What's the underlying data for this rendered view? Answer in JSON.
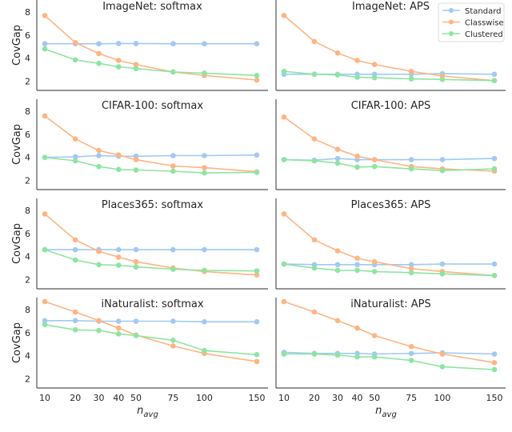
{
  "chart_data": {
    "type": "line",
    "layout": "4 rows x 2 columns",
    "x": [
      10,
      20,
      30,
      40,
      50,
      75,
      100,
      150
    ],
    "x_tick_labels": [
      "10",
      "20",
      "30",
      "40",
      "50",
      "75",
      "100",
      "150"
    ],
    "xlabel_main": "n",
    "xlabel_sub": "avg",
    "ylabel": "CovGap",
    "y_ticks": [
      2,
      4,
      6,
      8
    ],
    "y_tick_labels": [
      "2",
      "4",
      "6",
      "8"
    ],
    "ylim": [
      1.2,
      9.05
    ],
    "xscale": "sqrt",
    "legend": {
      "placement": "top-right of ImageNet: APS panel",
      "entries": [
        "Standard",
        "Classwise",
        "Clustered"
      ]
    },
    "colors": {
      "Standard": "#a1c9f4",
      "Classwise": "#ffb482",
      "Clustered": "#8de5a1"
    },
    "panels": [
      {
        "title": "ImageNet: softmax",
        "series": [
          {
            "name": "Standard",
            "values": [
              5.25,
              5.25,
              5.25,
              5.27,
              5.27,
              5.25,
              5.25,
              5.25
            ]
          },
          {
            "name": "Classwise",
            "values": [
              7.7,
              5.35,
              4.4,
              3.8,
              3.45,
              2.8,
              2.5,
              2.1
            ]
          },
          {
            "name": "Clustered",
            "values": [
              4.8,
              3.85,
              3.55,
              3.25,
              3.1,
              2.8,
              2.7,
              2.5
            ]
          }
        ]
      },
      {
        "title": "ImageNet: APS",
        "series": [
          {
            "name": "Standard",
            "values": [
              2.6,
              2.6,
              2.6,
              2.6,
              2.6,
              2.6,
              2.65,
              2.6
            ]
          },
          {
            "name": "Classwise",
            "values": [
              7.7,
              5.45,
              4.45,
              3.8,
              3.45,
              2.85,
              2.45,
              2.05
            ]
          },
          {
            "name": "Clustered",
            "values": [
              2.85,
              2.6,
              2.55,
              2.35,
              2.3,
              2.2,
              2.15,
              2.05
            ]
          }
        ]
      },
      {
        "title": "CIFAR-100: softmax",
        "series": [
          {
            "name": "Standard",
            "values": [
              4.0,
              4.05,
              4.15,
              4.1,
              4.1,
              4.15,
              4.15,
              4.2
            ]
          },
          {
            "name": "Classwise",
            "values": [
              7.6,
              5.6,
              4.6,
              4.2,
              3.8,
              3.25,
              3.1,
              2.75
            ]
          },
          {
            "name": "Clustered",
            "values": [
              4.0,
              3.7,
              3.2,
              2.95,
              2.9,
              2.8,
              2.65,
              2.7
            ]
          }
        ]
      },
      {
        "title": "CIFAR-100: APS",
        "series": [
          {
            "name": "Standard",
            "values": [
              3.8,
              3.75,
              3.9,
              3.8,
              3.8,
              3.8,
              3.8,
              3.9
            ]
          },
          {
            "name": "Classwise",
            "values": [
              7.5,
              5.6,
              4.7,
              4.1,
              3.8,
              3.2,
              3.0,
              2.8
            ]
          },
          {
            "name": "Clustered",
            "values": [
              3.8,
              3.7,
              3.5,
              3.15,
              3.2,
              3.0,
              2.85,
              3.0
            ]
          }
        ]
      },
      {
        "title": "Places365: softmax",
        "series": [
          {
            "name": "Standard",
            "values": [
              4.6,
              4.6,
              4.6,
              4.6,
              4.6,
              4.6,
              4.6,
              4.6
            ]
          },
          {
            "name": "Classwise",
            "values": [
              7.7,
              5.45,
              4.45,
              3.95,
              3.55,
              3.0,
              2.7,
              2.4
            ]
          },
          {
            "name": "Clustered",
            "values": [
              4.6,
              3.7,
              3.3,
              3.25,
              3.1,
              2.9,
              2.8,
              2.75
            ]
          }
        ]
      },
      {
        "title": "Places365: APS",
        "series": [
          {
            "name": "Standard",
            "values": [
              3.35,
              3.3,
              3.3,
              3.3,
              3.3,
              3.3,
              3.35,
              3.35
            ]
          },
          {
            "name": "Classwise",
            "values": [
              7.7,
              5.45,
              4.5,
              3.85,
              3.55,
              2.95,
              2.7,
              2.35
            ]
          },
          {
            "name": "Clustered",
            "values": [
              3.35,
              3.0,
              2.8,
              2.8,
              2.7,
              2.6,
              2.5,
              2.35
            ]
          }
        ]
      },
      {
        "title": "iNaturalist: softmax",
        "series": [
          {
            "name": "Standard",
            "values": [
              7.05,
              7.05,
              7.0,
              7.0,
              7.0,
              7.0,
              6.95,
              6.95
            ]
          },
          {
            "name": "Classwise",
            "values": [
              8.7,
              7.8,
              7.05,
              6.4,
              5.8,
              4.85,
              4.2,
              3.5
            ]
          },
          {
            "name": "Clustered",
            "values": [
              6.7,
              6.25,
              6.2,
              5.9,
              5.75,
              5.35,
              4.45,
              4.1
            ]
          }
        ]
      },
      {
        "title": "iNaturalist: APS",
        "series": [
          {
            "name": "Standard",
            "values": [
              4.3,
              4.2,
              4.2,
              4.2,
              4.15,
              4.2,
              4.25,
              4.15
            ]
          },
          {
            "name": "Classwise",
            "values": [
              8.7,
              7.8,
              7.05,
              6.4,
              5.75,
              4.8,
              4.15,
              3.4
            ]
          },
          {
            "name": "Clustered",
            "values": [
              4.15,
              4.15,
              4.05,
              3.9,
              3.9,
              3.6,
              3.05,
              2.8
            ]
          }
        ]
      }
    ]
  }
}
